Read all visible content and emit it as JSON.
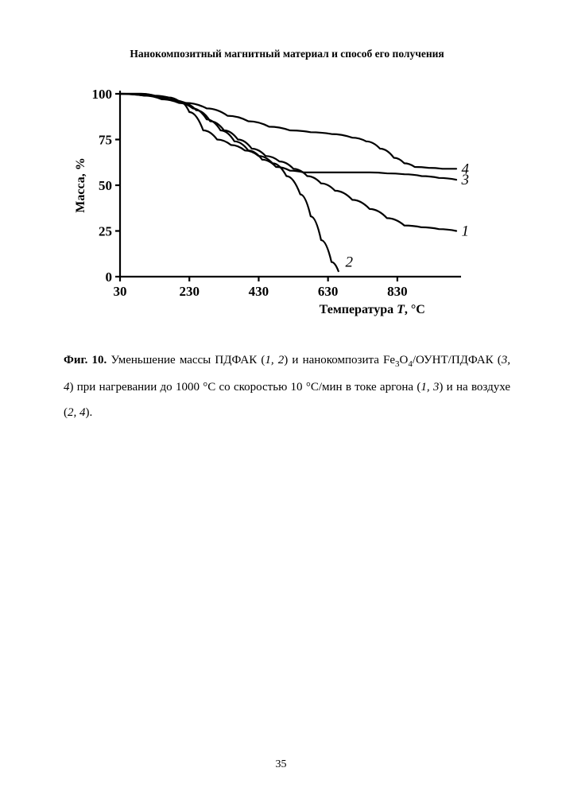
{
  "header": "Нанокомпозитный магнитный материал и способ его получения",
  "page_number": "35",
  "caption": {
    "fig_label": "Фиг. 10.",
    "part1": " Уменьшение массы ПДФАК (",
    "s12": "1, 2",
    "part2": ") и нанокомпозита Fe",
    "sub3": "3",
    "part3": "O",
    "sub4": "4",
    "part4": "/ОУНТ/ПДФАК (",
    "s34": "3, 4",
    "part5": ") при нагревании до 1000 °С со скоростью 10 °С/мин в токе аргона (",
    "s13": "1, 3",
    "part6": ") и на воздухе (",
    "s24": "2, 4",
    "part7": ")."
  },
  "chart": {
    "type": "line",
    "background_color": "#ffffff",
    "line_color": "#000000",
    "line_width": 2.2,
    "axis_width": 2.2,
    "axis_font_size": 17,
    "tick_font_size": 17,
    "series_label_font_size": 19,
    "series_label_style": "italic",
    "y_label": "Масса, %",
    "y_label_fontweight": "bold",
    "y_label_fontsize": 16,
    "x_label": "Температура T, °С",
    "x_label_part1": "Температура ",
    "x_label_T": "T",
    "x_label_part2": ", °С",
    "x_label_fontweight": "bold",
    "x_label_fontsize": 16,
    "xlim": [
      30,
      1000
    ],
    "ylim": [
      0,
      100
    ],
    "x_ticks": [
      30,
      230,
      430,
      630,
      830
    ],
    "y_ticks": [
      0,
      25,
      50,
      75,
      100
    ],
    "x_tick_labels": [
      "30",
      "230",
      "430",
      "630",
      "830"
    ],
    "y_tick_labels": [
      "0",
      "25",
      "50",
      "75",
      "100"
    ],
    "series": [
      {
        "id": "1",
        "label": "1",
        "points": [
          [
            30,
            100
          ],
          [
            90,
            100
          ],
          [
            130,
            99
          ],
          [
            170,
            97
          ],
          [
            210,
            95
          ],
          [
            250,
            91
          ],
          [
            290,
            85
          ],
          [
            330,
            80
          ],
          [
            370,
            75
          ],
          [
            410,
            70
          ],
          [
            450,
            66
          ],
          [
            490,
            63
          ],
          [
            530,
            59
          ],
          [
            570,
            55
          ],
          [
            610,
            51
          ],
          [
            650,
            47
          ],
          [
            700,
            42
          ],
          [
            750,
            37
          ],
          [
            800,
            32
          ],
          [
            850,
            28
          ],
          [
            900,
            27
          ],
          [
            950,
            26
          ],
          [
            1000,
            25
          ]
        ],
        "label_pos": [
          1015,
          25
        ]
      },
      {
        "id": "2",
        "label": "2",
        "points": [
          [
            30,
            100
          ],
          [
            90,
            100
          ],
          [
            130,
            99
          ],
          [
            170,
            98
          ],
          [
            200,
            96
          ],
          [
            230,
            90
          ],
          [
            270,
            80
          ],
          [
            310,
            75
          ],
          [
            350,
            72
          ],
          [
            390,
            69
          ],
          [
            430,
            66
          ],
          [
            470,
            62
          ],
          [
            510,
            55
          ],
          [
            550,
            45
          ],
          [
            580,
            33
          ],
          [
            610,
            20
          ],
          [
            640,
            8
          ],
          [
            660,
            3
          ]
        ],
        "label_pos": [
          680,
          8
        ]
      },
      {
        "id": "3",
        "label": "3",
        "points": [
          [
            30,
            100
          ],
          [
            100,
            99
          ],
          [
            150,
            97
          ],
          [
            200,
            95
          ],
          [
            240,
            92
          ],
          [
            280,
            86
          ],
          [
            320,
            80
          ],
          [
            360,
            74
          ],
          [
            400,
            69
          ],
          [
            440,
            64
          ],
          [
            480,
            60
          ],
          [
            520,
            58
          ],
          [
            560,
            57
          ],
          [
            600,
            57
          ],
          [
            650,
            57
          ],
          [
            700,
            57
          ],
          [
            750,
            57
          ],
          [
            800,
            56.5
          ],
          [
            850,
            56
          ],
          [
            900,
            55
          ],
          [
            950,
            54
          ],
          [
            1000,
            53
          ]
        ],
        "label_pos": [
          1015,
          53
        ]
      },
      {
        "id": "4",
        "label": "4",
        "points": [
          [
            30,
            100
          ],
          [
            100,
            99
          ],
          [
            160,
            97
          ],
          [
            220,
            95
          ],
          [
            280,
            92
          ],
          [
            340,
            88
          ],
          [
            400,
            85
          ],
          [
            460,
            82
          ],
          [
            520,
            80
          ],
          [
            580,
            79
          ],
          [
            640,
            78
          ],
          [
            700,
            76
          ],
          [
            740,
            74
          ],
          [
            780,
            70
          ],
          [
            820,
            65
          ],
          [
            850,
            62
          ],
          [
            880,
            60
          ],
          [
            920,
            59.5
          ],
          [
            960,
            59
          ],
          [
            1000,
            59
          ]
        ],
        "label_pos": [
          1015,
          59
        ]
      }
    ]
  }
}
